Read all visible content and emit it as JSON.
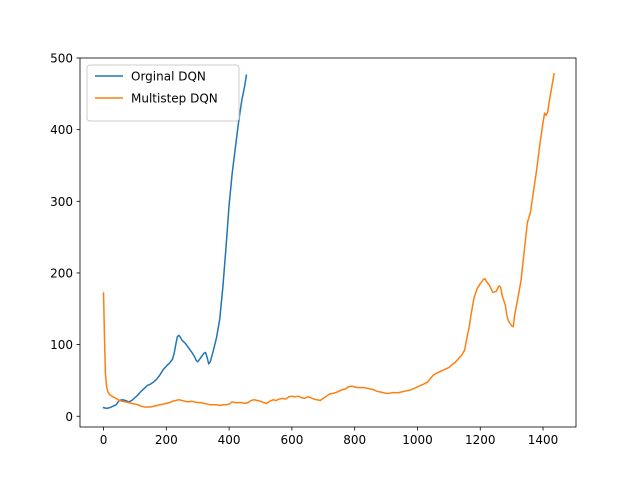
{
  "chart_data": {
    "type": "line",
    "title": "",
    "xlabel": "",
    "ylabel": "",
    "xlim": [
      -75,
      1505
    ],
    "ylim": [
      -15,
      500
    ],
    "xticks": [
      0,
      200,
      400,
      600,
      800,
      1000,
      1200,
      1400
    ],
    "yticks": [
      0,
      100,
      200,
      300,
      400,
      500
    ],
    "grid": false,
    "legend": {
      "position": "top-left"
    },
    "series": [
      {
        "name": "Orginal DQN",
        "color": "#1f77b4",
        "points": [
          [
            0,
            12
          ],
          [
            10,
            11
          ],
          [
            20,
            12
          ],
          [
            30,
            14
          ],
          [
            40,
            16
          ],
          [
            50,
            22
          ],
          [
            60,
            23
          ],
          [
            70,
            22
          ],
          [
            80,
            20
          ],
          [
            90,
            22
          ],
          [
            100,
            26
          ],
          [
            110,
            30
          ],
          [
            120,
            35
          ],
          [
            130,
            39
          ],
          [
            140,
            43
          ],
          [
            150,
            45
          ],
          [
            160,
            48
          ],
          [
            170,
            52
          ],
          [
            180,
            58
          ],
          [
            190,
            65
          ],
          [
            200,
            70
          ],
          [
            210,
            74
          ],
          [
            220,
            80
          ],
          [
            225,
            88
          ],
          [
            230,
            100
          ],
          [
            235,
            111
          ],
          [
            240,
            113
          ],
          [
            245,
            110
          ],
          [
            250,
            106
          ],
          [
            260,
            102
          ],
          [
            270,
            96
          ],
          [
            280,
            90
          ],
          [
            290,
            83
          ],
          [
            295,
            78
          ],
          [
            300,
            76
          ],
          [
            305,
            79
          ],
          [
            310,
            82
          ],
          [
            320,
            88
          ],
          [
            325,
            89
          ],
          [
            330,
            82
          ],
          [
            335,
            73
          ],
          [
            340,
            76
          ],
          [
            345,
            84
          ],
          [
            350,
            92
          ],
          [
            360,
            110
          ],
          [
            370,
            135
          ],
          [
            380,
            180
          ],
          [
            390,
            235
          ],
          [
            400,
            295
          ],
          [
            410,
            340
          ],
          [
            420,
            375
          ],
          [
            430,
            410
          ],
          [
            440,
            440
          ],
          [
            450,
            462
          ],
          [
            455,
            476
          ]
        ]
      },
      {
        "name": "Multistep DQN",
        "color": "#ff7f0e",
        "points": [
          [
            0,
            172
          ],
          [
            3,
            110
          ],
          [
            6,
            60
          ],
          [
            10,
            40
          ],
          [
            15,
            33
          ],
          [
            20,
            30
          ],
          [
            30,
            27
          ],
          [
            40,
            25
          ],
          [
            50,
            22
          ],
          [
            60,
            21
          ],
          [
            70,
            20
          ],
          [
            80,
            19
          ],
          [
            90,
            18
          ],
          [
            100,
            17
          ],
          [
            110,
            16
          ],
          [
            120,
            14
          ],
          [
            130,
            13
          ],
          [
            140,
            13
          ],
          [
            150,
            13
          ],
          [
            160,
            14
          ],
          [
            170,
            15
          ],
          [
            180,
            16
          ],
          [
            190,
            17
          ],
          [
            200,
            18
          ],
          [
            210,
            19
          ],
          [
            220,
            21
          ],
          [
            230,
            22
          ],
          [
            240,
            23
          ],
          [
            250,
            22
          ],
          [
            260,
            21
          ],
          [
            270,
            20
          ],
          [
            280,
            21
          ],
          [
            290,
            20
          ],
          [
            300,
            19
          ],
          [
            310,
            19
          ],
          [
            320,
            18
          ],
          [
            330,
            17
          ],
          [
            340,
            16
          ],
          [
            350,
            16
          ],
          [
            360,
            16
          ],
          [
            370,
            15
          ],
          [
            380,
            16
          ],
          [
            390,
            16
          ],
          [
            400,
            17
          ],
          [
            410,
            20
          ],
          [
            420,
            19
          ],
          [
            430,
            19
          ],
          [
            440,
            19
          ],
          [
            450,
            18
          ],
          [
            460,
            19
          ],
          [
            470,
            22
          ],
          [
            480,
            23
          ],
          [
            490,
            22
          ],
          [
            500,
            21
          ],
          [
            510,
            19
          ],
          [
            520,
            18
          ],
          [
            530,
            21
          ],
          [
            540,
            23
          ],
          [
            550,
            22
          ],
          [
            560,
            24
          ],
          [
            570,
            25
          ],
          [
            580,
            24
          ],
          [
            590,
            27
          ],
          [
            600,
            28
          ],
          [
            610,
            27
          ],
          [
            620,
            28
          ],
          [
            630,
            26
          ],
          [
            640,
            25
          ],
          [
            650,
            27
          ],
          [
            660,
            26
          ],
          [
            670,
            24
          ],
          [
            680,
            23
          ],
          [
            690,
            22
          ],
          [
            700,
            25
          ],
          [
            710,
            28
          ],
          [
            720,
            31
          ],
          [
            730,
            32
          ],
          [
            740,
            33
          ],
          [
            750,
            35
          ],
          [
            760,
            37
          ],
          [
            770,
            38
          ],
          [
            780,
            41
          ],
          [
            790,
            42
          ],
          [
            800,
            41
          ],
          [
            810,
            40
          ],
          [
            820,
            40
          ],
          [
            830,
            40
          ],
          [
            840,
            39
          ],
          [
            850,
            38
          ],
          [
            860,
            37
          ],
          [
            870,
            35
          ],
          [
            880,
            34
          ],
          [
            890,
            33
          ],
          [
            900,
            32
          ],
          [
            910,
            32
          ],
          [
            920,
            33
          ],
          [
            930,
            33
          ],
          [
            940,
            33
          ],
          [
            950,
            34
          ],
          [
            960,
            35
          ],
          [
            970,
            36
          ],
          [
            980,
            37
          ],
          [
            990,
            39
          ],
          [
            1000,
            41
          ],
          [
            1010,
            43
          ],
          [
            1020,
            45
          ],
          [
            1030,
            47
          ],
          [
            1040,
            52
          ],
          [
            1050,
            57
          ],
          [
            1060,
            60
          ],
          [
            1070,
            62
          ],
          [
            1080,
            64
          ],
          [
            1090,
            66
          ],
          [
            1100,
            68
          ],
          [
            1110,
            72
          ],
          [
            1120,
            75
          ],
          [
            1130,
            80
          ],
          [
            1140,
            85
          ],
          [
            1150,
            92
          ],
          [
            1160,
            115
          ],
          [
            1165,
            125
          ],
          [
            1170,
            140
          ],
          [
            1180,
            165
          ],
          [
            1190,
            178
          ],
          [
            1200,
            185
          ],
          [
            1210,
            191
          ],
          [
            1215,
            192
          ],
          [
            1220,
            188
          ],
          [
            1230,
            182
          ],
          [
            1240,
            173
          ],
          [
            1250,
            174
          ],
          [
            1255,
            178
          ],
          [
            1260,
            182
          ],
          [
            1265,
            180
          ],
          [
            1270,
            168
          ],
          [
            1280,
            155
          ],
          [
            1285,
            140
          ],
          [
            1290,
            133
          ],
          [
            1300,
            126
          ],
          [
            1305,
            125
          ],
          [
            1310,
            142
          ],
          [
            1320,
            165
          ],
          [
            1330,
            190
          ],
          [
            1340,
            230
          ],
          [
            1350,
            270
          ],
          [
            1360,
            285
          ],
          [
            1370,
            315
          ],
          [
            1380,
            345
          ],
          [
            1390,
            380
          ],
          [
            1400,
            410
          ],
          [
            1405,
            423
          ],
          [
            1410,
            420
          ],
          [
            1415,
            425
          ],
          [
            1420,
            440
          ],
          [
            1430,
            465
          ],
          [
            1435,
            478
          ]
        ]
      }
    ]
  }
}
